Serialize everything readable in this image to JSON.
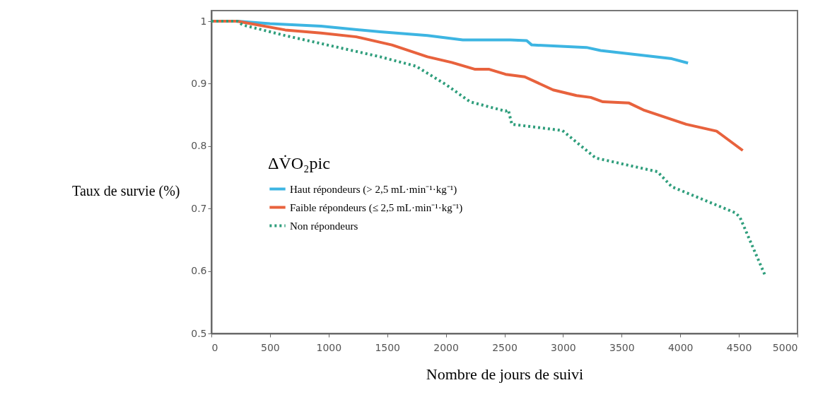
{
  "chart_data": {
    "type": "line",
    "xlabel": "Nombre de jours de suivi",
    "ylabel": "Taux de survie (%)",
    "legend_title": "ΔV̇O₂pic",
    "legend": "left",
    "grid": false,
    "xlim": [
      0,
      5000
    ],
    "xticks": [
      0,
      500,
      1000,
      1500,
      2000,
      2500,
      3000,
      3500,
      4000,
      4500,
      5000
    ],
    "ylim": [
      0.5,
      1.017
    ],
    "yticks": [
      0.5,
      0.6,
      0.7,
      0.8,
      0.9,
      1
    ],
    "series": [
      {
        "name": "Haut répondeurs (> 2,5 mL·min⁻¹·kg⁻¹)",
        "color": "#3db5e2",
        "line_style": "solid",
        "x": [
          0,
          220,
          500,
          935,
          1440,
          1843,
          2145,
          2550,
          2690,
          2733,
          3200,
          3320,
          3927,
          4066
        ],
        "values": [
          1.0,
          1.0,
          0.996,
          0.992,
          0.983,
          0.977,
          0.97,
          0.97,
          0.969,
          0.962,
          0.958,
          0.953,
          0.94,
          0.933
        ]
      },
      {
        "name": "Faible répondeurs (≤ 2,5 mL·min⁻¹·kg⁻¹)",
        "color": "#e8623d",
        "line_style": "solid",
        "x": [
          0,
          220,
          630,
          935,
          1236,
          1540,
          1843,
          2050,
          2250,
          2370,
          2510,
          2673,
          2915,
          3115,
          3236,
          3340,
          3563,
          3685,
          4050,
          4310,
          4533
        ],
        "values": [
          1.0,
          1.0,
          0.986,
          0.981,
          0.975,
          0.962,
          0.943,
          0.934,
          0.923,
          0.923,
          0.915,
          0.911,
          0.89,
          0.881,
          0.878,
          0.871,
          0.869,
          0.858,
          0.835,
          0.824,
          0.793
        ]
      },
      {
        "name": "Non répondeurs",
        "color": "#2f9e7c",
        "line_style": "dotted",
        "x": [
          0,
          220,
          267,
          630,
          1036,
          1440,
          1745,
          2006,
          2206,
          2509,
          2533,
          2563,
          2994,
          3278,
          3806,
          3927,
          4472,
          4509,
          4721
        ],
        "values": [
          1.0,
          1.0,
          0.994,
          0.977,
          0.96,
          0.943,
          0.928,
          0.898,
          0.871,
          0.856,
          0.858,
          0.835,
          0.825,
          0.781,
          0.759,
          0.735,
          0.693,
          0.686,
          0.594
        ]
      }
    ]
  }
}
